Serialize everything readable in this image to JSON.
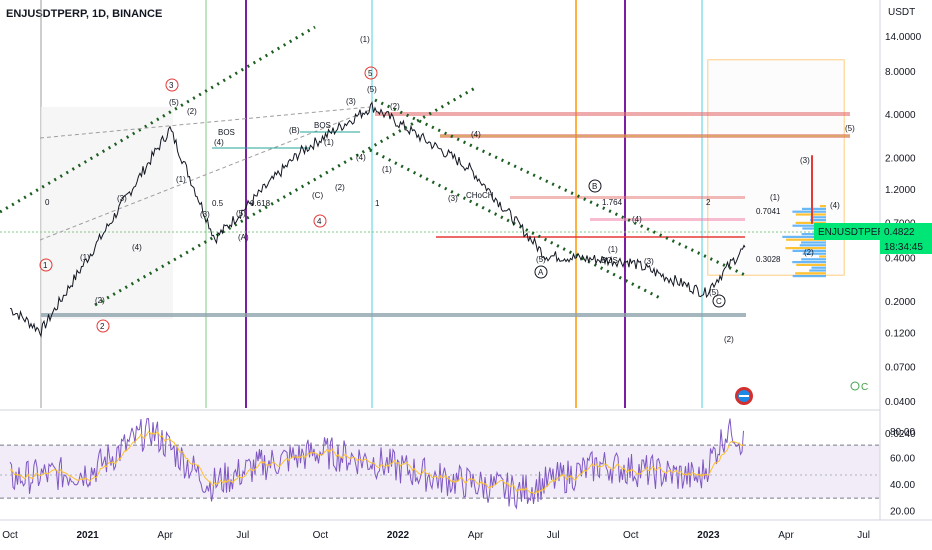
{
  "header": {
    "title": "ENJUSDTPERP, 1D, BINANCE"
  },
  "price_axis": {
    "unit": "USDT",
    "ticks": [
      "14.0000",
      "8.0000",
      "4.0000",
      "2.0000",
      "1.2000",
      "0.7000",
      "0.4000",
      "0.2000",
      "0.1200",
      "0.0700",
      "0.0400",
      "0.0240"
    ],
    "current_symbol": "ENJUSDTPERP",
    "current_price": "0.4822",
    "countdown": "18:34:45",
    "accent": "#00e676"
  },
  "time_axis": {
    "ticks": [
      "Oct",
      "2021",
      "Apr",
      "Jul",
      "Oct",
      "2022",
      "Apr",
      "Jul",
      "Oct",
      "2023",
      "Apr",
      "Jul"
    ]
  },
  "rsi_axis": {
    "ticks": [
      "80.00",
      "60.00",
      "40.00",
      "20.00"
    ]
  },
  "chart_data": {
    "type": "line",
    "title": "ENJUSDTPERP, 1D, BINANCE",
    "y_scale": "log",
    "ylabel": "USDT",
    "series": [],
    "x": [
      "Oct",
      "2021",
      "Apr",
      "Jul",
      "Oct",
      "2022",
      "Apr",
      "Jul",
      "Oct",
      "2023"
    ],
    "values": [
      0.16,
      0.14,
      3.2,
      0.9,
      2.4,
      4.5,
      1.6,
      0.42,
      0.38,
      0.48
    ],
    "rsi_values": [
      45,
      50,
      80,
      40,
      65,
      60,
      45,
      40,
      55,
      82,
      70
    ],
    "ylim": [
      0.024,
      14
    ],
    "rsi_ylim": [
      15,
      95
    ],
    "rsi_levels": [
      70,
      30
    ],
    "grid": false,
    "annotations": {
      "wave_labels": [
        "(1)",
        "(2)",
        "(3)",
        "(4)",
        "(5)",
        "(A)",
        "(B)",
        "(C)",
        "1",
        "2",
        "3",
        "4",
        "5",
        "0",
        "0.5",
        "0.618",
        "1.764",
        "0.7041",
        "0.3028",
        "BOS",
        "CHoCH"
      ]
    }
  }
}
